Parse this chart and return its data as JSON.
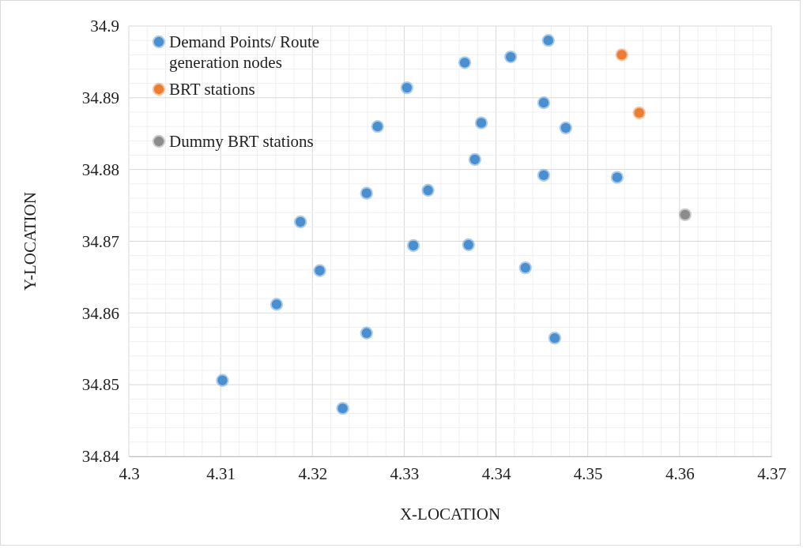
{
  "chart_data": {
    "type": "scatter",
    "xlabel": "X-LOCATION",
    "ylabel": "Y-LOCATION",
    "xlim": [
      4.3,
      4.37
    ],
    "xticks": [
      4.3,
      {
        "value": 4.302,
        "label": null
      },
      {
        "value": 4.304,
        "label": null
      },
      {
        "value": 4.306,
        "label": null
      },
      {
        "value": 4.308,
        "label": null
      },
      4.31,
      {
        "value": 4.312,
        "label": null
      },
      {
        "value": 4.314,
        "label": null
      },
      {
        "value": 4.316,
        "label": null
      },
      {
        "value": 4.318,
        "label": null
      },
      4.32,
      {
        "value": 4.322,
        "label": null
      },
      {
        "value": 4.324,
        "label": null
      },
      {
        "value": 4.326,
        "label": null
      },
      {
        "value": 4.328,
        "label": null
      },
      4.33,
      {
        "value": 4.332,
        "label": null
      },
      {
        "value": 4.334,
        "label": null
      },
      {
        "value": 4.336,
        "label": null
      },
      {
        "value": 4.338,
        "label": null
      },
      4.34,
      {
        "value": 4.342,
        "label": null
      },
      {
        "value": 4.344,
        "label": null
      },
      {
        "value": 4.346,
        "label": null
      },
      {
        "value": 4.348,
        "label": null
      },
      4.35,
      {
        "value": 4.352,
        "label": null
      },
      {
        "value": 4.354,
        "label": null
      },
      {
        "value": 4.356,
        "label": null
      },
      {
        "value": 4.358,
        "label": null
      },
      4.36,
      {
        "value": 4.362,
        "label": null
      },
      {
        "value": 4.364,
        "label": null
      },
      {
        "value": 4.366,
        "label": null
      },
      {
        "value": 4.368,
        "label": null
      },
      4.37
    ],
    "ylim": [
      34.84,
      34.9
    ],
    "yticks": [
      34.84,
      {
        "value": 34.842,
        "label": null
      },
      {
        "value": 34.844,
        "label": null
      },
      {
        "value": 34.846,
        "label": null
      },
      {
        "value": 34.848,
        "label": null
      },
      34.85,
      {
        "value": 34.852,
        "label": null
      },
      {
        "value": 34.854,
        "label": null
      },
      {
        "value": 34.856,
        "label": null
      },
      {
        "value": 34.858,
        "label": null
      },
      34.86,
      {
        "value": 34.862,
        "label": null
      },
      {
        "value": 34.864,
        "label": null
      },
      {
        "value": 34.866,
        "label": null
      },
      {
        "value": 34.868,
        "label": null
      },
      34.87,
      {
        "value": 34.872,
        "label": null
      },
      {
        "value": 34.874,
        "label": null
      },
      {
        "value": 34.876,
        "label": null
      },
      {
        "value": 34.878,
        "label": null
      },
      34.88,
      {
        "value": 34.882,
        "label": null
      },
      {
        "value": 34.884,
        "label": null
      },
      {
        "value": 34.886,
        "label": null
      },
      {
        "value": 34.888,
        "label": null
      },
      34.89,
      {
        "value": 34.892,
        "label": null
      },
      {
        "value": 34.894,
        "label": null
      },
      {
        "value": 34.896,
        "label": null
      },
      {
        "value": 34.898,
        "label": null
      },
      34.9
    ],
    "grid": true,
    "legend": "top left",
    "marker": "circle",
    "series": [
      {
        "name": "Demand Points/ Route generation nodes",
        "color": "#4a8fcf",
        "x": [
          4.3457,
          4.3416,
          4.3366,
          4.3303,
          4.3452,
          4.3384,
          4.3271,
          4.3476,
          4.3377,
          4.3452,
          4.3532,
          4.3326,
          4.3259,
          4.3187,
          4.331,
          4.337,
          4.3432,
          4.3208,
          4.3161,
          4.3259,
          4.3464,
          4.3102,
          4.3233
        ],
        "values": [
          34.898,
          34.8957,
          34.8949,
          34.8914,
          34.8893,
          34.8865,
          34.886,
          34.8858,
          34.8814,
          34.8792,
          34.8789,
          34.8771,
          34.8767,
          34.8727,
          34.8694,
          34.8695,
          34.8663,
          34.8659,
          34.8612,
          34.8572,
          34.8565,
          34.8506,
          34.8467
        ]
      },
      {
        "name": "BRT stations",
        "color": "#ed7d31",
        "x": [
          4.3537,
          4.3556
        ],
        "values": [
          34.896,
          34.8879
        ]
      },
      {
        "name": "Dummy BRT stations",
        "color": "#8c8c8c",
        "x": [
          4.3606
        ],
        "values": [
          34.8737
        ]
      }
    ]
  }
}
